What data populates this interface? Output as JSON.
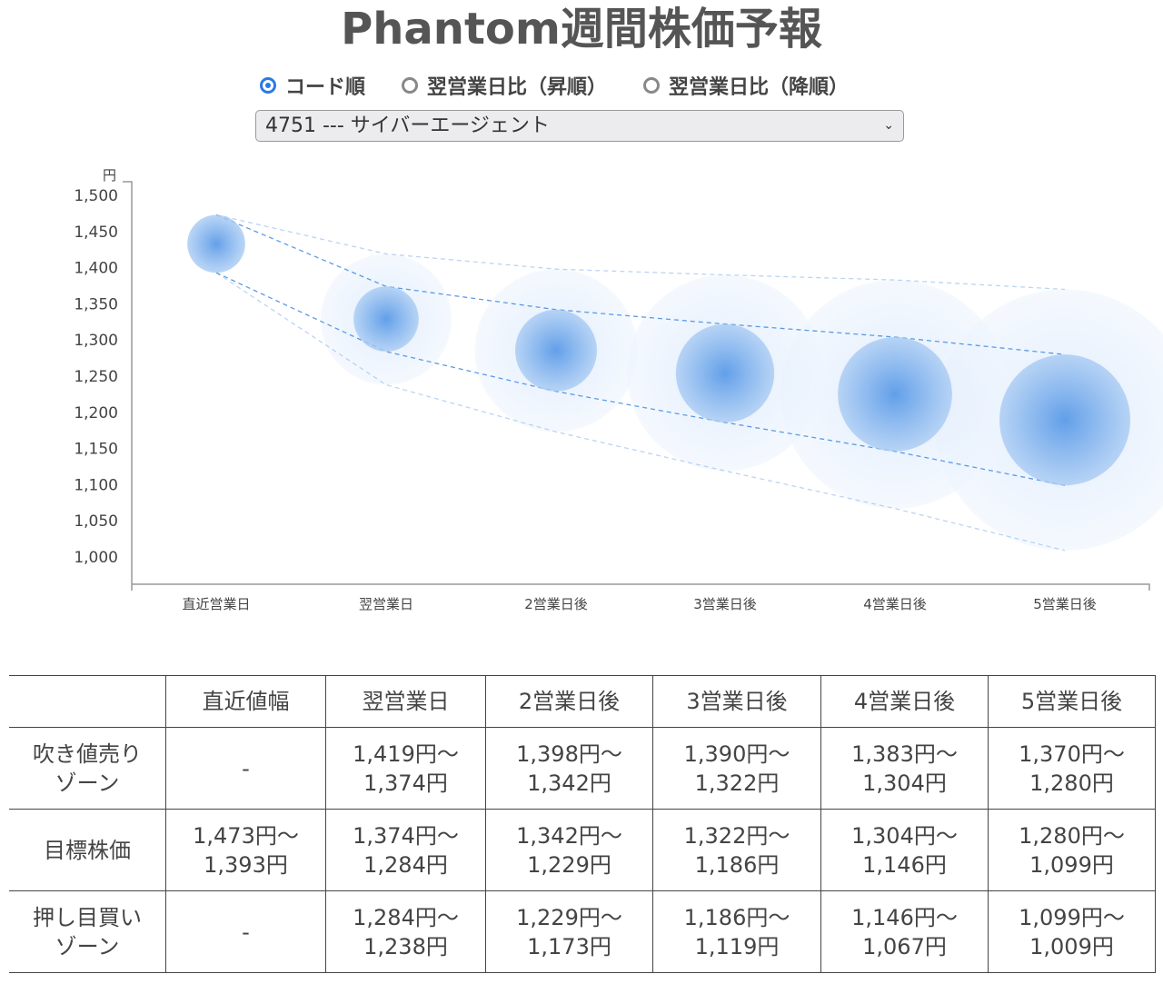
{
  "title": "Phantom週間株価予報",
  "radios": [
    {
      "label": "コード順",
      "checked": true
    },
    {
      "label": "翌営業日比（昇順）",
      "checked": false
    },
    {
      "label": "翌営業日比（降順）",
      "checked": false
    }
  ],
  "select": {
    "value": "4751 --- サイバーエージェント"
  },
  "chart_data": {
    "type": "scatter",
    "ylabel": "円",
    "ylim": [
      1000,
      1500
    ],
    "yticks": [
      "1,000",
      "1,050",
      "1,100",
      "1,150",
      "1,200",
      "1,250",
      "1,300",
      "1,350",
      "1,400",
      "1,450",
      "1,500"
    ],
    "categories": [
      "直近営業日",
      "翌営業日",
      "2営業日後",
      "3営業日後",
      "4営業日後",
      "5営業日後"
    ],
    "target": [
      [
        1473,
        1393
      ],
      [
        1374,
        1284
      ],
      [
        1342,
        1229
      ],
      [
        1322,
        1186
      ],
      [
        1304,
        1146
      ],
      [
        1280,
        1099
      ]
    ],
    "sell_zone": [
      null,
      [
        1419,
        1374
      ],
      [
        1398,
        1342
      ],
      [
        1390,
        1322
      ],
      [
        1383,
        1304
      ],
      [
        1370,
        1280
      ]
    ],
    "buy_zone": [
      null,
      [
        1284,
        1238
      ],
      [
        1229,
        1173
      ],
      [
        1186,
        1119
      ],
      [
        1146,
        1067
      ],
      [
        1099,
        1009
      ]
    ],
    "color": "#4a90e2"
  },
  "table": {
    "headers": [
      "",
      "直近値幅",
      "翌営業日",
      "2営業日後",
      "3営業日後",
      "4営業日後",
      "5営業日後"
    ],
    "rows": [
      {
        "label": [
          "吹き値売り",
          "ゾーン"
        ],
        "cells": [
          [
            "-"
          ],
          [
            "1,419円〜",
            "1,374円"
          ],
          [
            "1,398円〜",
            "1,342円"
          ],
          [
            "1,390円〜",
            "1,322円"
          ],
          [
            "1,383円〜",
            "1,304円"
          ],
          [
            "1,370円〜",
            "1,280円"
          ]
        ]
      },
      {
        "label": [
          "目標株価"
        ],
        "cells": [
          [
            "1,473円〜",
            "1,393円"
          ],
          [
            "1,374円〜",
            "1,284円"
          ],
          [
            "1,342円〜",
            "1,229円"
          ],
          [
            "1,322円〜",
            "1,186円"
          ],
          [
            "1,304円〜",
            "1,146円"
          ],
          [
            "1,280円〜",
            "1,099円"
          ]
        ]
      },
      {
        "label": [
          "押し目買い",
          "ゾーン"
        ],
        "cells": [
          [
            "-"
          ],
          [
            "1,284円〜",
            "1,238円"
          ],
          [
            "1,229円〜",
            "1,173円"
          ],
          [
            "1,186円〜",
            "1,119円"
          ],
          [
            "1,146円〜",
            "1,067円"
          ],
          [
            "1,099円〜",
            "1,009円"
          ]
        ]
      }
    ]
  }
}
